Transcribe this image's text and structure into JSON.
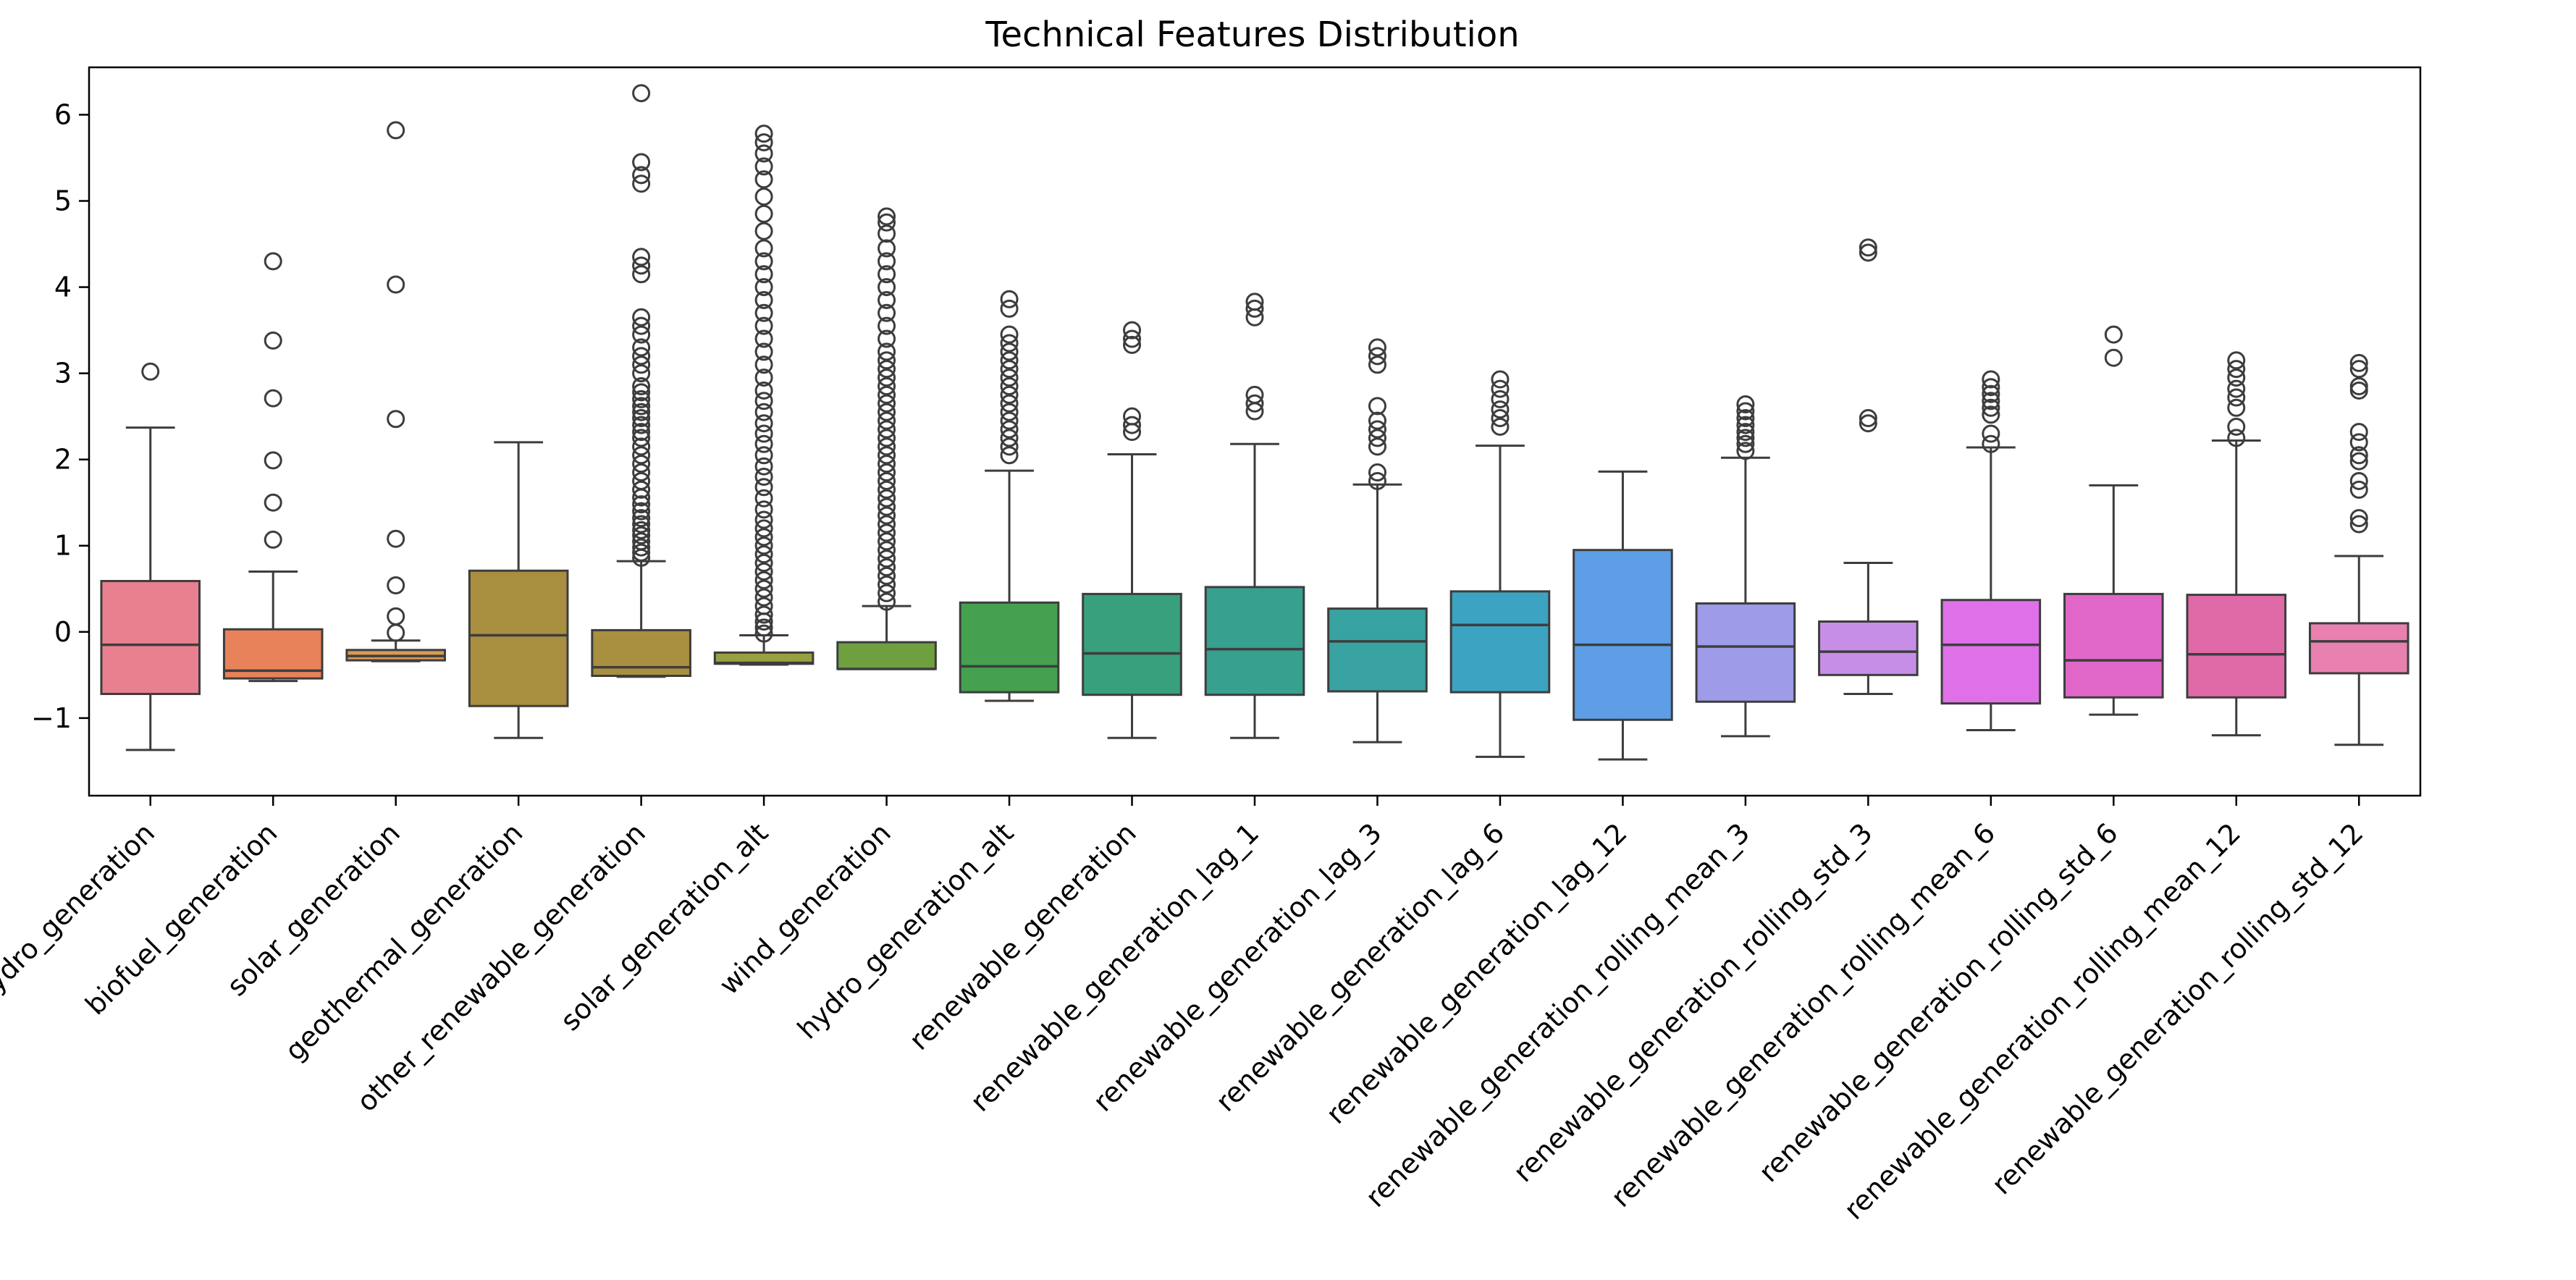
{
  "chart_data": {
    "type": "box",
    "title": "Technical Features Distribution",
    "xlabel": "",
    "ylabel": "",
    "ylim": [
      -1.9,
      6.55
    ],
    "yticks": [
      -1,
      0,
      1,
      2,
      3,
      4,
      5,
      6
    ],
    "ytick_labels": [
      "−1",
      "0",
      "1",
      "2",
      "3",
      "4",
      "5",
      "6"
    ],
    "grid": false,
    "legend": "none",
    "categories": [
      "hydro_generation",
      "biofuel_generation",
      "solar_generation",
      "geothermal_generation",
      "other_renewable_generation",
      "solar_generation_alt",
      "wind_generation",
      "hydro_generation_alt",
      "renewable_generation",
      "renewable_generation_lag_1",
      "renewable_generation_lag_3",
      "renewable_generation_lag_6",
      "renewable_generation_lag_12",
      "renewable_generation_rolling_mean_3",
      "renewable_generation_rolling_std_3",
      "renewable_generation_rolling_mean_6",
      "renewable_generation_rolling_std_6",
      "renewable_generation_rolling_mean_12",
      "renewable_generation_rolling_std_12"
    ],
    "colors": [
      "#e8808f",
      "#e8825a",
      "#d99a52",
      "#a88f40",
      "#a89040",
      "#99a040",
      "#6fa040",
      "#45a050",
      "#38a07c",
      "#37a08f",
      "#38a3a0",
      "#3ca3c2",
      "#5d9ee6",
      "#9e9be8",
      "#c78ee8",
      "#e070e8",
      "#e067c7",
      "#e06aa8",
      "#e880b0"
    ],
    "boxes": [
      {
        "min": -1.37,
        "q1": -0.72,
        "median": -0.15,
        "q3": 0.59,
        "max": 2.37,
        "fliers": [
          3.02
        ]
      },
      {
        "min": -0.57,
        "q1": -0.54,
        "median": -0.45,
        "q3": 0.03,
        "max": 0.7,
        "fliers": [
          1.07,
          1.5,
          1.99,
          2.71,
          3.38,
          4.3
        ]
      },
      {
        "min": -0.34,
        "q1": -0.33,
        "median": -0.28,
        "q3": -0.21,
        "max": -0.1,
        "fliers": [
          -0.01,
          0.18,
          0.54,
          1.08,
          2.47,
          4.03,
          5.82
        ]
      },
      {
        "min": -1.23,
        "q1": -0.86,
        "median": -0.04,
        "q3": 0.71,
        "max": 2.2,
        "fliers": []
      },
      {
        "min": -0.52,
        "q1": -0.51,
        "median": -0.41,
        "q3": 0.02,
        "max": 0.82,
        "fliers": [
          0.86,
          0.92,
          0.98,
          1.05,
          1.12,
          1.18,
          1.25,
          1.32,
          1.4,
          1.48,
          1.56,
          1.65,
          1.75,
          1.85,
          1.95,
          2.05,
          2.15,
          2.25,
          2.32,
          2.4,
          2.48,
          2.55,
          2.62,
          2.7,
          2.78,
          2.85,
          3.0,
          3.1,
          3.2,
          3.3,
          3.45,
          3.55,
          3.65,
          4.15,
          4.25,
          4.35,
          5.2,
          5.3,
          5.45,
          6.25
        ]
      },
      {
        "min": -0.38,
        "q1": -0.37,
        "median": -0.36,
        "q3": -0.24,
        "max": -0.04,
        "fliers": [
          -0.02,
          0.05,
          0.12,
          0.2,
          0.3,
          0.4,
          0.5,
          0.6,
          0.7,
          0.8,
          0.9,
          1.0,
          1.1,
          1.2,
          1.3,
          1.42,
          1.55,
          1.68,
          1.8,
          1.92,
          2.05,
          2.18,
          2.3,
          2.42,
          2.55,
          2.68,
          2.8,
          2.95,
          3.1,
          3.25,
          3.4,
          3.55,
          3.7,
          3.85,
          4.0,
          4.15,
          4.3,
          4.45,
          4.65,
          4.85,
          5.05,
          5.25,
          5.4,
          5.55,
          5.68,
          5.78
        ]
      },
      {
        "min": -0.43,
        "q1": -0.43,
        "median": -0.43,
        "q3": -0.12,
        "max": 0.3,
        "fliers": [
          0.35,
          0.45,
          0.55,
          0.65,
          0.75,
          0.85,
          0.95,
          1.05,
          1.15,
          1.25,
          1.35,
          1.45,
          1.55,
          1.65,
          1.75,
          1.85,
          1.95,
          2.05,
          2.15,
          2.25,
          2.35,
          2.45,
          2.55,
          2.65,
          2.75,
          2.85,
          2.95,
          3.05,
          3.15,
          3.25,
          3.4,
          3.55,
          3.7,
          3.85,
          4.0,
          4.15,
          4.3,
          4.45,
          4.62,
          4.75,
          4.82
        ]
      },
      {
        "min": -0.8,
        "q1": -0.7,
        "median": -0.4,
        "q3": 0.34,
        "max": 1.87,
        "fliers": [
          2.05,
          2.15,
          2.25,
          2.35,
          2.45,
          2.55,
          2.65,
          2.75,
          2.85,
          2.95,
          3.05,
          3.15,
          3.25,
          3.35,
          3.45,
          3.75,
          3.86
        ]
      },
      {
        "min": -1.23,
        "q1": -0.73,
        "median": -0.25,
        "q3": 0.44,
        "max": 2.06,
        "fliers": [
          2.32,
          2.4,
          2.5,
          3.33,
          3.4,
          3.5
        ]
      },
      {
        "min": -1.23,
        "q1": -0.73,
        "median": -0.2,
        "q3": 0.52,
        "max": 2.18,
        "fliers": [
          2.56,
          2.65,
          2.75,
          3.65,
          3.75,
          3.83
        ]
      },
      {
        "min": -1.28,
        "q1": -0.69,
        "median": -0.11,
        "q3": 0.27,
        "max": 1.71,
        "fliers": [
          1.75,
          1.85,
          2.15,
          2.25,
          2.35,
          2.45,
          2.62,
          3.1,
          3.2,
          3.3
        ]
      },
      {
        "min": -1.45,
        "q1": -0.7,
        "median": 0.08,
        "q3": 0.47,
        "max": 2.16,
        "fliers": [
          2.38,
          2.48,
          2.58,
          2.7,
          2.82,
          2.93
        ]
      },
      {
        "min": -1.48,
        "q1": -1.02,
        "median": -0.15,
        "q3": 0.95,
        "max": 1.86,
        "fliers": []
      },
      {
        "min": -1.21,
        "q1": -0.81,
        "median": -0.17,
        "q3": 0.33,
        "max": 2.02,
        "fliers": [
          2.1,
          2.18,
          2.25,
          2.32,
          2.4,
          2.48,
          2.56,
          2.64
        ]
      },
      {
        "min": -0.72,
        "q1": -0.5,
        "median": -0.23,
        "q3": 0.12,
        "max": 0.8,
        "fliers": [
          2.42,
          2.48,
          4.4,
          4.46
        ]
      },
      {
        "min": -1.14,
        "q1": -0.83,
        "median": -0.15,
        "q3": 0.37,
        "max": 2.14,
        "fliers": [
          2.18,
          2.3,
          2.52,
          2.6,
          2.68,
          2.76,
          2.84,
          2.93
        ]
      },
      {
        "min": -0.96,
        "q1": -0.76,
        "median": -0.33,
        "q3": 0.44,
        "max": 1.7,
        "fliers": [
          3.18,
          3.45
        ]
      },
      {
        "min": -1.2,
        "q1": -0.76,
        "median": -0.26,
        "q3": 0.43,
        "max": 2.22,
        "fliers": [
          2.25,
          2.38,
          2.6,
          2.72,
          2.82,
          2.95,
          3.05,
          3.15
        ]
      },
      {
        "min": -1.31,
        "q1": -0.48,
        "median": -0.11,
        "q3": 0.1,
        "max": 0.88,
        "fliers": [
          1.25,
          1.32,
          1.65,
          1.75,
          1.98,
          2.05,
          2.2,
          2.32,
          2.8,
          2.85,
          3.05,
          3.12
        ]
      }
    ]
  }
}
